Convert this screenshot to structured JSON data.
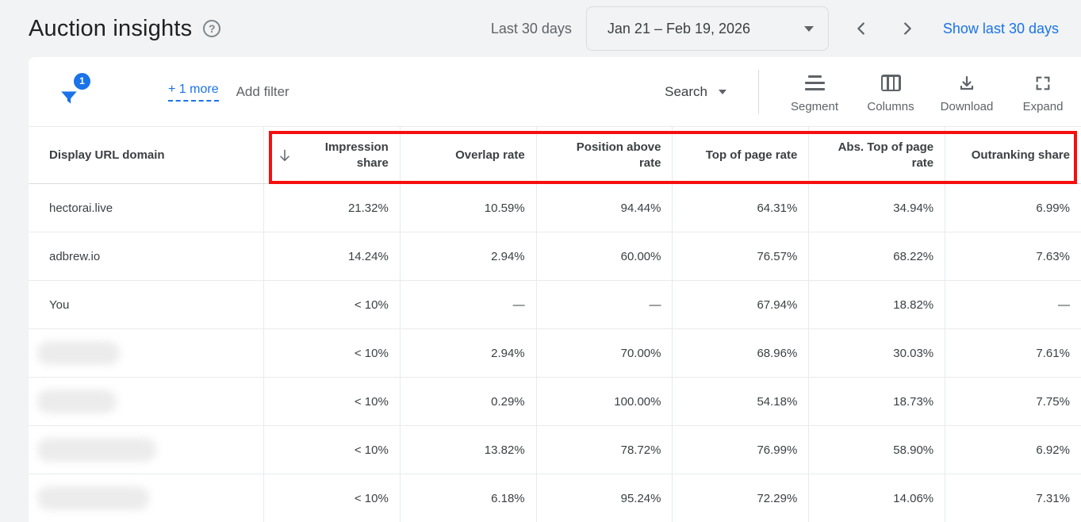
{
  "header": {
    "title": "Auction insights",
    "help_icon": "?",
    "date_label": "Last 30 days",
    "date_range": "Jan 21 – Feb 19, 2026",
    "show_last_link": "Show last 30 days"
  },
  "toolbar": {
    "filter_badge": "1",
    "more_filters": "+ 1 more",
    "add_filter": "Add filter",
    "search_label": "Search",
    "actions": [
      {
        "label": "Segment"
      },
      {
        "label": "Columns"
      },
      {
        "label": "Download"
      },
      {
        "label": "Expand"
      }
    ]
  },
  "table": {
    "domain_header": "Display URL domain",
    "sorted_column": "Impression share",
    "sort_direction": "descending",
    "columns": [
      "Impression\nshare",
      "Overlap rate",
      "Position above\nrate",
      "Top of page rate",
      "Abs. Top of page\nrate",
      "Outranking share"
    ],
    "rows": [
      {
        "domain": "hectorai.live",
        "blurred": false,
        "values": [
          "21.32%",
          "10.59%",
          "94.44%",
          "64.31%",
          "34.94%",
          "6.99%"
        ]
      },
      {
        "domain": "adbrew.io",
        "blurred": false,
        "values": [
          "14.24%",
          "2.94%",
          "60.00%",
          "76.57%",
          "68.22%",
          "7.63%"
        ]
      },
      {
        "domain": "You",
        "blurred": false,
        "values": [
          "< 10%",
          "—",
          "—",
          "67.94%",
          "18.82%",
          "—"
        ]
      },
      {
        "domain": "",
        "blurred": true,
        "values": [
          "< 10%",
          "2.94%",
          "70.00%",
          "68.96%",
          "30.03%",
          "7.61%"
        ]
      },
      {
        "domain": "",
        "blurred": true,
        "values": [
          "< 10%",
          "0.29%",
          "100.00%",
          "54.18%",
          "18.73%",
          "7.75%"
        ]
      },
      {
        "domain": "",
        "blurred": true,
        "values": [
          "< 10%",
          "13.82%",
          "78.72%",
          "76.99%",
          "58.90%",
          "6.92%"
        ]
      },
      {
        "domain": "",
        "blurred": true,
        "values": [
          "< 10%",
          "6.18%",
          "95.24%",
          "72.29%",
          "14.06%",
          "7.31%"
        ]
      }
    ]
  },
  "colors": {
    "accent_blue": "#1a73e8",
    "annotation_red": "#f50f0f",
    "text_dark": "#202124",
    "text_grey": "#5f6368",
    "cell_text": "#3c4043",
    "page_background": "#f1f3f4"
  }
}
